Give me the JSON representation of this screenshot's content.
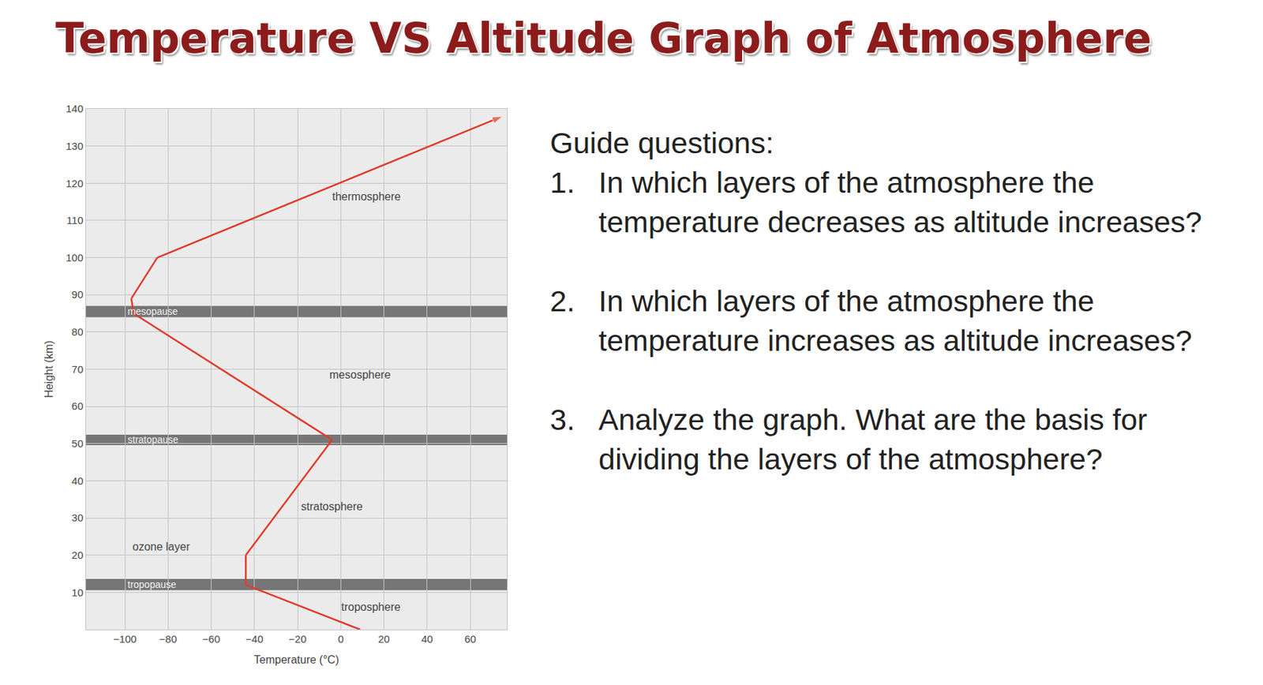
{
  "page_title": "Temperature VS Altitude Graph of Atmosphere",
  "guide": {
    "heading": "Guide questions:",
    "questions": [
      {
        "number": "1.",
        "text": "In which layers of the atmosphere the temperature decreases as altitude increases?"
      },
      {
        "number": "2.",
        "text": "In which layers of the atmosphere the temperature increases as altitude increases?"
      },
      {
        "number": "3.",
        "text": "Analyze the graph. What are the basis for dividing the layers of the atmosphere?"
      }
    ]
  },
  "chart_data": {
    "type": "line",
    "x_label": "Temperature (°C)",
    "y_label": "Height (km)",
    "x": [
      9,
      -44,
      -44,
      -4,
      -96,
      -97,
      -85,
      75
    ],
    "values": [
      0,
      12,
      20,
      51,
      85,
      89,
      100,
      138
    ],
    "color": "#e23b2a",
    "marker": "arrow",
    "xlim": [
      -118,
      77
    ],
    "xticks": [
      -100,
      -80,
      -60,
      -40,
      -20,
      0,
      20,
      40,
      60
    ],
    "ylim": [
      0,
      140
    ],
    "yticks": [
      10,
      20,
      30,
      40,
      50,
      60,
      70,
      80,
      90,
      100,
      110,
      120,
      130,
      140
    ],
    "grid": true,
    "bands": [
      {
        "label": "mesopause",
        "from": 84,
        "to": 87
      },
      {
        "label": "stratopause",
        "from": 49.6,
        "to": 52.4
      },
      {
        "label": "tropopause",
        "from": 10.6,
        "to": 13.6
      }
    ],
    "annotations": [
      {
        "text": "thermosphere",
        "x": 12,
        "y": 116.5
      },
      {
        "text": "mesosphere",
        "x": 9,
        "y": 68.6
      },
      {
        "text": "stratosphere",
        "x": -4,
        "y": 33
      },
      {
        "text": "ozone layer",
        "x": -83,
        "y": 22.3
      },
      {
        "text": "troposphere",
        "x": 14,
        "y": 6
      }
    ]
  }
}
